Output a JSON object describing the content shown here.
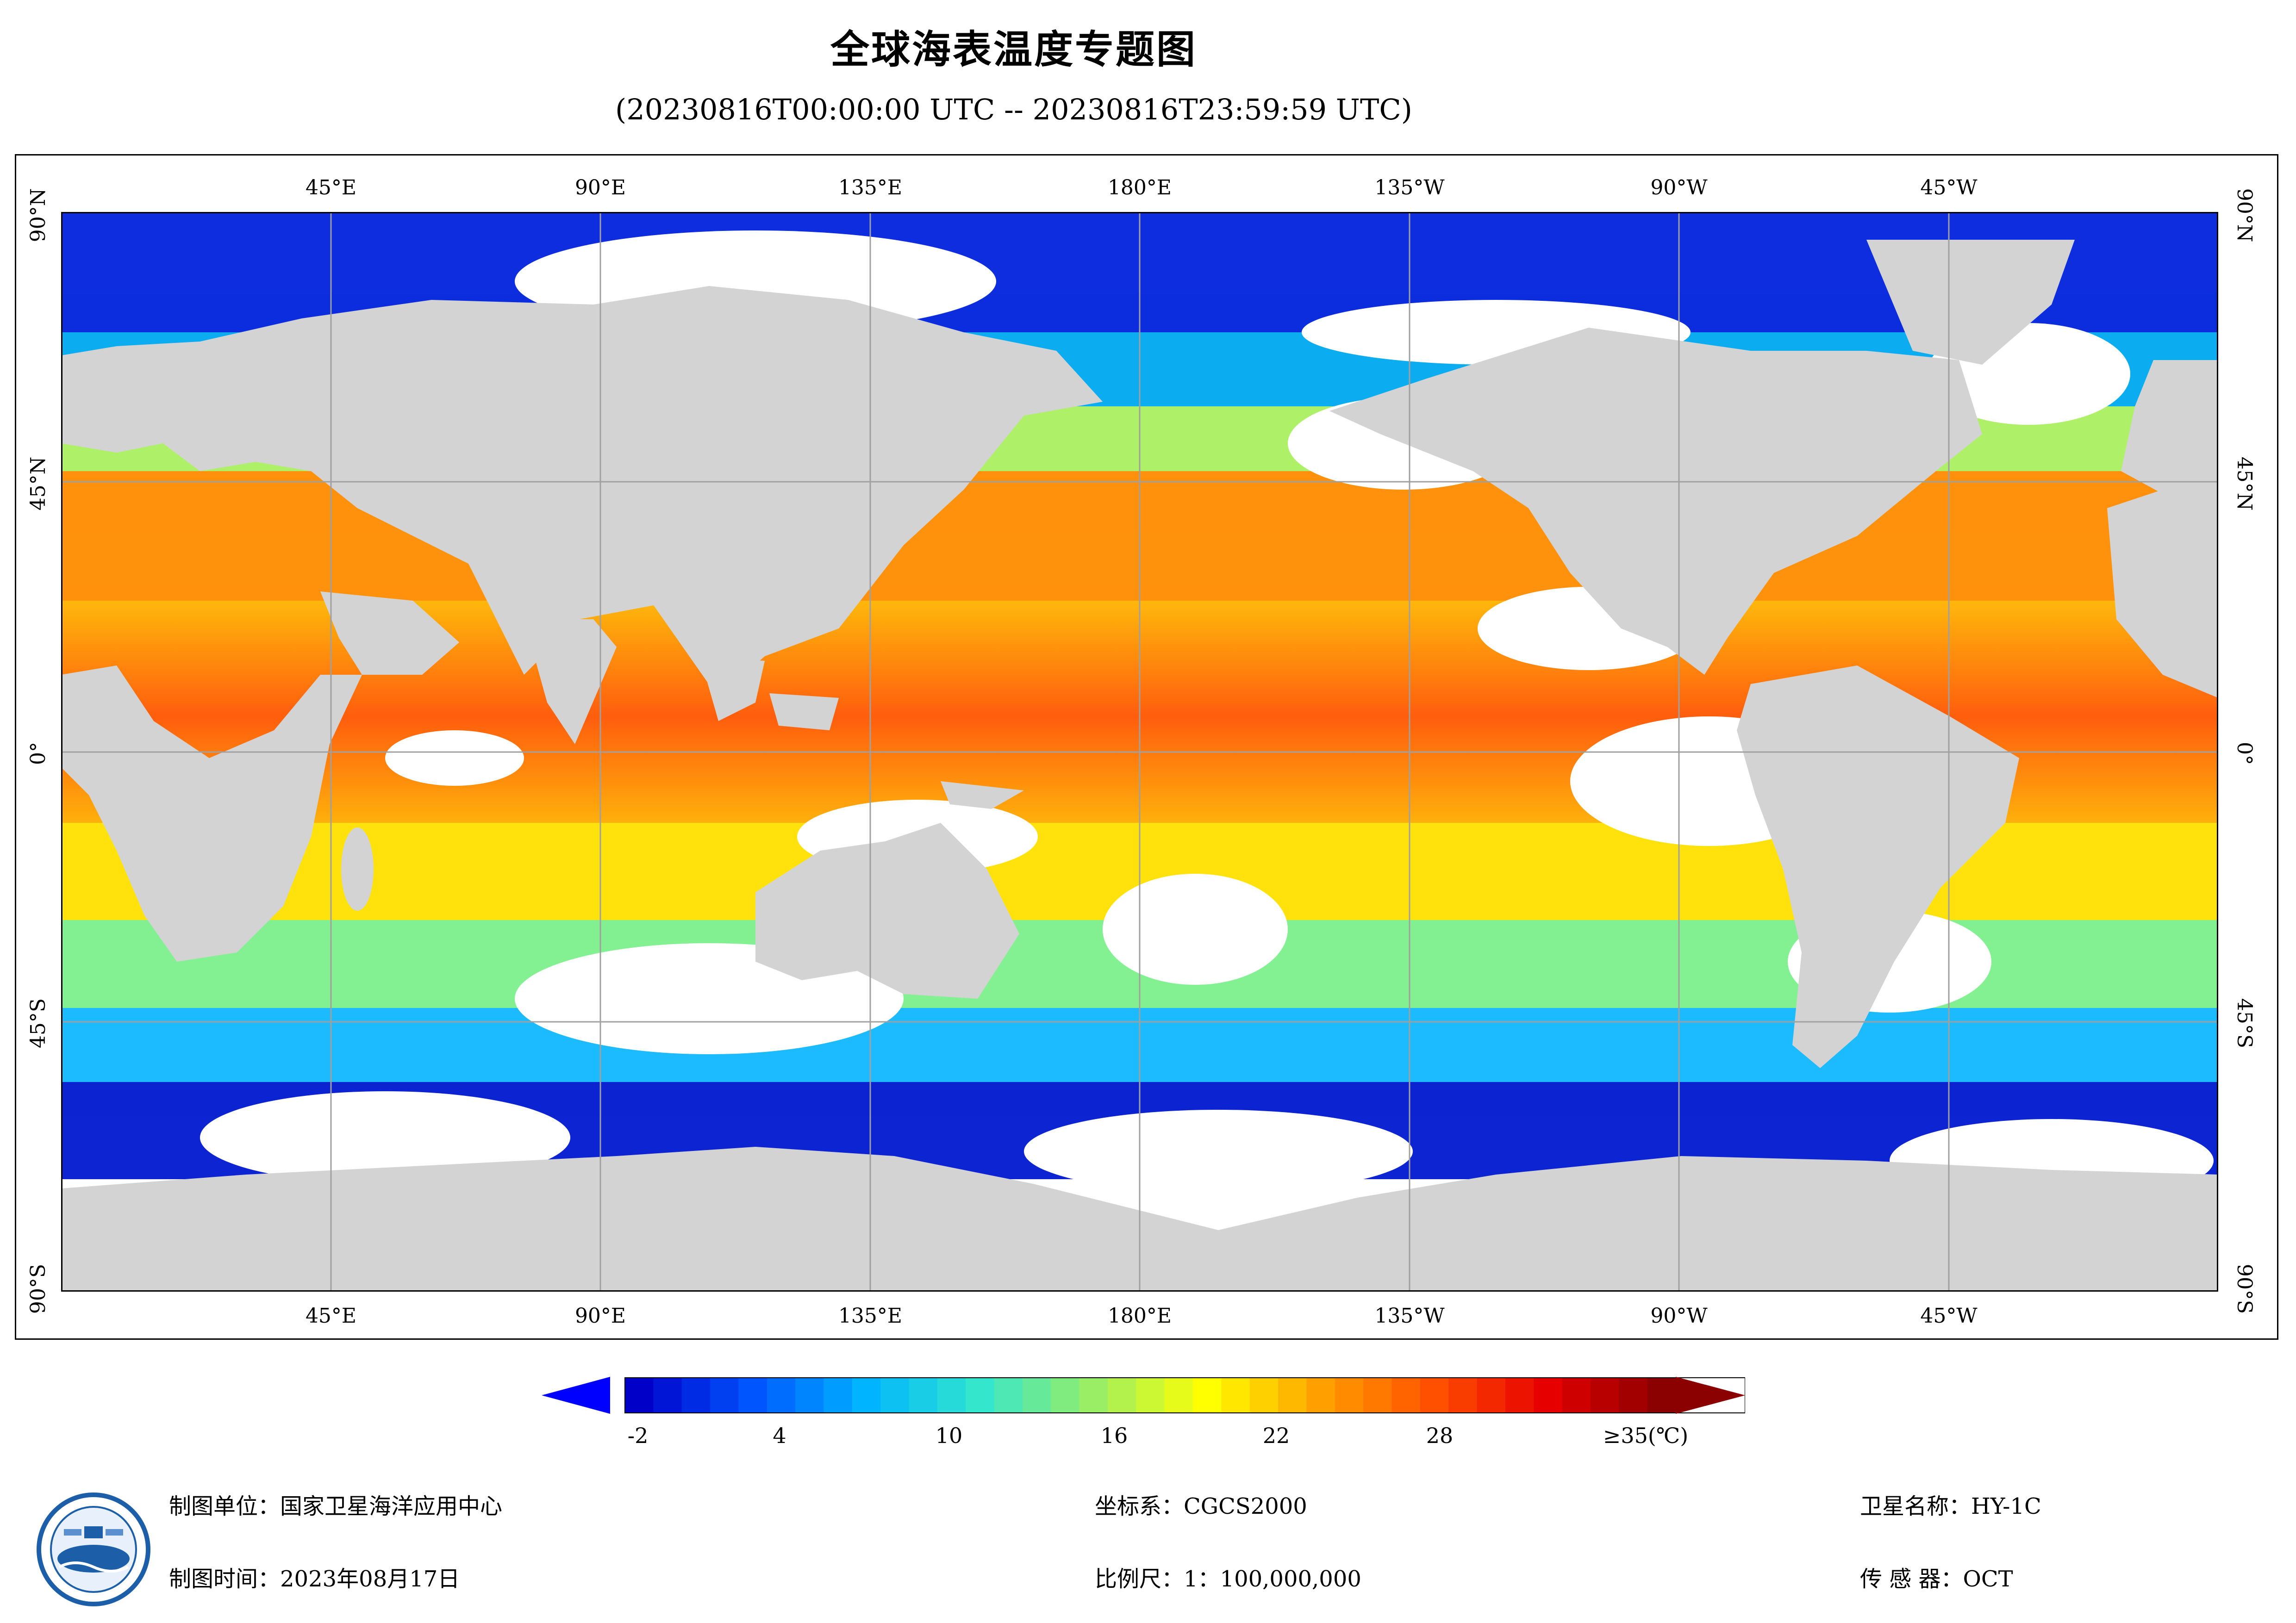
{
  "title": "全球海表温度专题图",
  "subtitle": "(20230816T00:00:00 UTC -- 20230816T23:59:59 UTC)",
  "axes": {
    "top_labels": [
      "45°E",
      "90°E",
      "135°E",
      "180°E",
      "135°W",
      "90°W",
      "45°W"
    ],
    "bottom_labels": [
      "45°E",
      "90°E",
      "135°E",
      "180°E",
      "135°W",
      "90°W",
      "45°W"
    ],
    "lat_labels": [
      "90°N",
      "45°N",
      "0°",
      "45°S",
      "90°S"
    ]
  },
  "colorbar": {
    "tick_labels": [
      "-2",
      "4",
      "10",
      "16",
      "22",
      "28",
      "≥35(℃)"
    ],
    "min": -2,
    "max": 35,
    "unit": "℃",
    "colors": [
      "#0000c8",
      "#0055ff",
      "#00b4ff",
      "#33e6cc",
      "#99ee66",
      "#ffff00",
      "#ffa000",
      "#ff5000",
      "#e60000",
      "#8b0000"
    ]
  },
  "info": {
    "producer": "制图单位：国家卫星海洋应用中心",
    "date": "制图时间：2023年08月17日",
    "crs": "坐标系：CGCS2000",
    "scale": "比例尺：1：100,000,000",
    "satellite": "卫星名称：HY-1C",
    "sensor": "传 感 器：OCT"
  },
  "colors": {
    "land": "#d3d3d3",
    "nodata": "#ffffff",
    "grid": "#a0a0a0"
  },
  "logo_icon": "nsoas-logo-icon"
}
